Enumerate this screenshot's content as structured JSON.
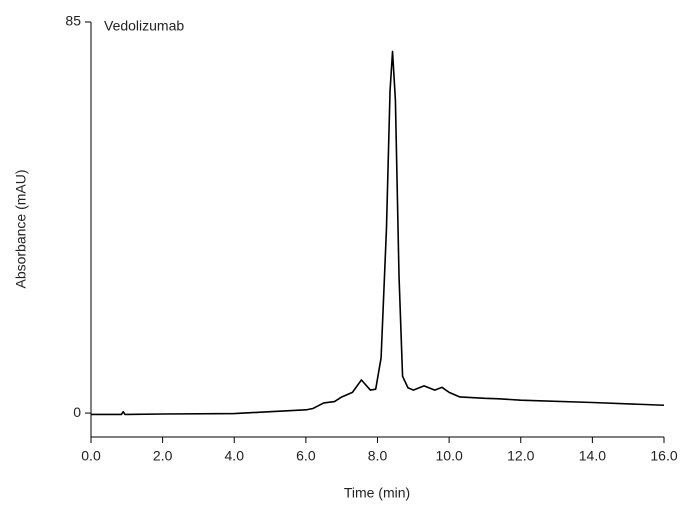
{
  "chart_data": {
    "type": "line",
    "annotation": "Vedolizumab",
    "x_label": "Time (min)",
    "y_label": "Absorbance (mAU)",
    "xlim": [
      0,
      16
    ],
    "ylim": [
      -5.2,
      85
    ],
    "xticks": [
      {
        "value": 0,
        "label": "0.0"
      },
      {
        "value": 2,
        "label": "2.0"
      },
      {
        "value": 4,
        "label": "4.0"
      },
      {
        "value": 6,
        "label": "6.0"
      },
      {
        "value": 8,
        "label": "8.0"
      },
      {
        "value": 10,
        "label": "10.0"
      },
      {
        "value": 12,
        "label": "12.0"
      },
      {
        "value": 14,
        "label": "14.0"
      },
      {
        "value": 16,
        "label": "16.0"
      }
    ],
    "yticks": [
      0,
      85
    ],
    "grid": false,
    "series": [
      {
        "name": "Vedolizumab",
        "color": "#000000",
        "x": [
          0,
          0.85,
          0.9,
          0.95,
          2,
          4,
          5,
          6,
          6.2,
          6.5,
          6.8,
          7.0,
          7.3,
          7.55,
          7.8,
          7.95,
          8.1,
          8.25,
          8.35,
          8.42,
          8.5,
          8.6,
          8.7,
          8.85,
          9.0,
          9.3,
          9.6,
          9.8,
          10.0,
          10.3,
          11,
          11.4,
          12,
          14,
          16
        ],
        "values": [
          -0.3,
          -0.3,
          0.3,
          -0.3,
          -0.2,
          -0.1,
          0.3,
          0.7,
          1,
          2.2,
          2.5,
          3.5,
          4.5,
          7.2,
          5,
          5.2,
          12,
          40,
          70,
          78.6,
          68,
          30,
          8,
          5.5,
          5,
          5.9,
          5,
          5.6,
          4.5,
          3.5,
          3.2,
          3.1,
          2.8,
          2.3,
          1.7
        ]
      }
    ]
  }
}
